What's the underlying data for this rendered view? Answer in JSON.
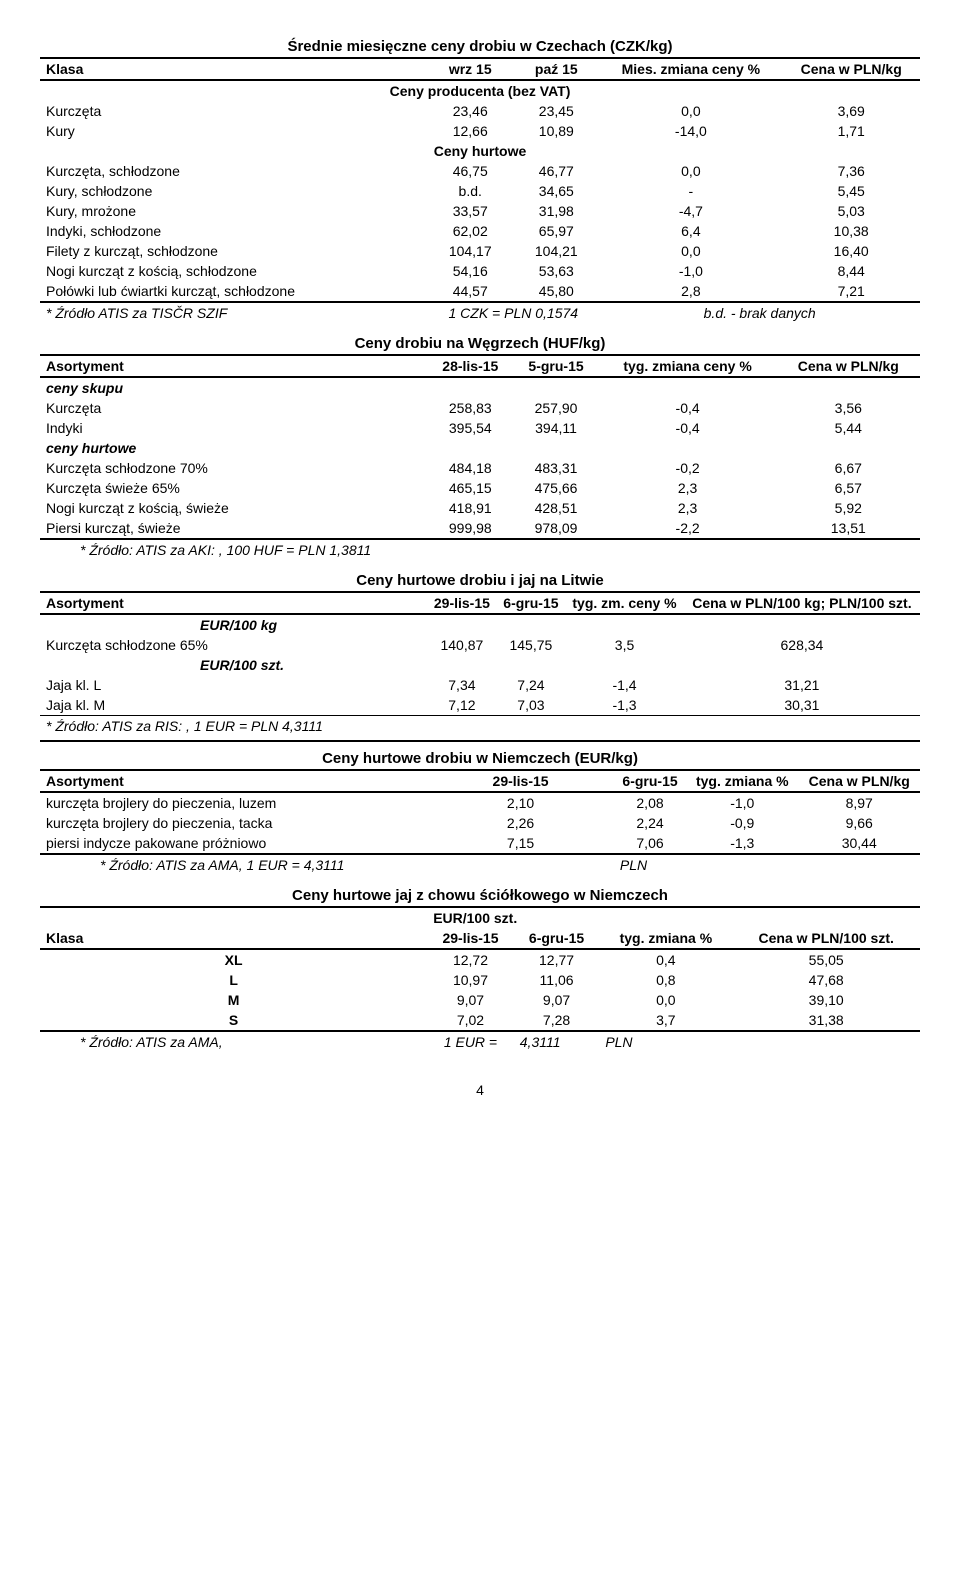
{
  "czech": {
    "title": "Średnie miesięczne ceny drobiu w Czechach (CZK/kg)",
    "col_klasa": "Klasa",
    "col1": "wrz 15",
    "col2": "paź 15",
    "col3": "Mies. zmiana ceny %",
    "col4": "Cena w PLN/kg",
    "sub1": "Ceny producenta (bez VAT)",
    "rows1": [
      {
        "label": "Kurczęta",
        "c1": "23,46",
        "c2": "23,45",
        "c3": "0,0",
        "c4": "3,69"
      },
      {
        "label": "Kury",
        "c1": "12,66",
        "c2": "10,89",
        "c3": "-14,0",
        "c4": "1,71"
      }
    ],
    "sub2": "Ceny hurtowe",
    "rows2": [
      {
        "label": "Kurczęta, schłodzone",
        "c1": "46,75",
        "c2": "46,77",
        "c3": "0,0",
        "c4": "7,36"
      },
      {
        "label": "Kury, schłodzone",
        "c1": "b.d.",
        "c2": "34,65",
        "c3": "-",
        "c4": "5,45"
      },
      {
        "label": "Kury, mrożone",
        "c1": "33,57",
        "c2": "31,98",
        "c3": "-4,7",
        "c4": "5,03"
      },
      {
        "label": "Indyki, schłodzone",
        "c1": "62,02",
        "c2": "65,97",
        "c3": "6,4",
        "c4": "10,38"
      },
      {
        "label": "Filety z kurcząt, schłodzone",
        "c1": "104,17",
        "c2": "104,21",
        "c3": "0,0",
        "c4": "16,40"
      },
      {
        "label": "Nogi kurcząt z kością, schłodzone",
        "c1": "54,16",
        "c2": "53,63",
        "c3": "-1,0",
        "c4": "8,44"
      },
      {
        "label": "Połówki lub ćwiartki kurcząt, schłodzone",
        "c1": "44,57",
        "c2": "45,80",
        "c3": "2,8",
        "c4": "7,21"
      }
    ],
    "note_left": "* Źródło ATIS za TISČR SZIF",
    "note_mid": "1 CZK = PLN  0,1574",
    "note_right": "b.d. - brak danych"
  },
  "hungary": {
    "title": "Ceny drobiu na Węgrzech (HUF/kg)",
    "col_label": "Asortyment",
    "col1": "28-lis-15",
    "col2": "5-gru-15",
    "col3": "tyg. zmiana ceny %",
    "col4": "Cena w PLN/kg",
    "sub1": "ceny skupu",
    "rows1": [
      {
        "label": "Kurczęta",
        "c1": "258,83",
        "c2": "257,90",
        "c3": "-0,4",
        "c4": "3,56"
      },
      {
        "label": "Indyki",
        "c1": "395,54",
        "c2": "394,11",
        "c3": "-0,4",
        "c4": "5,44"
      }
    ],
    "sub2": "ceny hurtowe",
    "rows2": [
      {
        "label": "Kurczęta schłodzone 70%",
        "c1": "484,18",
        "c2": "483,31",
        "c3": "-0,2",
        "c4": "6,67"
      },
      {
        "label": "Kurczęta świeże 65%",
        "c1": "465,15",
        "c2": "475,66",
        "c3": "2,3",
        "c4": "6,57"
      },
      {
        "label": "Nogi kurcząt z kością, świeże",
        "c1": "418,91",
        "c2": "428,51",
        "c3": "2,3",
        "c4": "5,92"
      },
      {
        "label": "Piersi kurcząt, świeże",
        "c1": "999,98",
        "c2": "978,09",
        "c3": "-2,2",
        "c4": "13,51"
      }
    ],
    "note": "* Źródło: ATIS za AKI: , 100 HUF = PLN 1,3811"
  },
  "lithuania": {
    "title": "Ceny hurtowe drobiu i jaj na Litwie",
    "col_label": "Asortyment",
    "col1": "29-lis-15",
    "col2": "6-gru-15",
    "col3": "tyg. zm. ceny %",
    "col4": "Cena w PLN/100 kg; PLN/100 szt.",
    "sub1": "EUR/100 kg",
    "rows1": [
      {
        "label": "Kurczęta schłodzone 65%",
        "c1": "140,87",
        "c2": "145,75",
        "c3": "3,5",
        "c4": "628,34"
      }
    ],
    "sub2": "EUR/100 szt.",
    "rows2": [
      {
        "label": "Jaja kl. L",
        "c1": "7,34",
        "c2": "7,24",
        "c3": "-1,4",
        "c4": "31,21"
      },
      {
        "label": "Jaja kl. M",
        "c1": "7,12",
        "c2": "7,03",
        "c3": "-1,3",
        "c4": "30,31"
      }
    ],
    "note": "* Źródło: ATIS za RIS: , 1 EUR = PLN 4,3111"
  },
  "germany_poultry": {
    "title": "Ceny hurtowe drobiu w Niemczech (EUR/kg)",
    "col_label": "Asortyment",
    "col1": "29-lis-15",
    "col2": "6-gru-15",
    "col3": "tyg. zmiana %",
    "col4": "Cena w PLN/kg",
    "rows": [
      {
        "label": "kurczęta brojlery do pieczenia, luzem",
        "c1": "2,10",
        "c2": "2,08",
        "c3": "-1,0",
        "c4": "8,97"
      },
      {
        "label": "kurczęta brojlery do pieczenia, tacka",
        "c1": "2,26",
        "c2": "2,24",
        "c3": "-0,9",
        "c4": "9,66"
      },
      {
        "label": "piersi indycze pakowane próżniowo",
        "c1": "7,15",
        "c2": "7,06",
        "c3": "-1,3",
        "c4": "30,44"
      }
    ],
    "note_left": "* Źródło: ATIS za AMA, 1 EUR  =  4,3111",
    "note_right": "PLN"
  },
  "germany_eggs": {
    "title": "Ceny hurtowe jaj z chowu ściółkowego w Niemczech",
    "unit": "EUR/100 szt.",
    "col_klasa": "Klasa",
    "col1": "29-lis-15",
    "col2": "6-gru-15",
    "col3": "tyg. zmiana %",
    "col4": "Cena w PLN/100 szt.",
    "rows": [
      {
        "label": "XL",
        "c1": "12,72",
        "c2": "12,77",
        "c3": "0,4",
        "c4": "55,05"
      },
      {
        "label": "L",
        "c1": "10,97",
        "c2": "11,06",
        "c3": "0,8",
        "c4": "47,68"
      },
      {
        "label": "M",
        "c1": "9,07",
        "c2": "9,07",
        "c3": "0,0",
        "c4": "39,10"
      },
      {
        "label": "S",
        "c1": "7,02",
        "c2": "7,28",
        "c3": "3,7",
        "c4": "31,38"
      }
    ],
    "note_left": "* Źródło: ATIS za AMA,",
    "note_mid": "1 EUR  =",
    "note_val": "4,3111",
    "note_right": "PLN"
  },
  "page_number": "4"
}
